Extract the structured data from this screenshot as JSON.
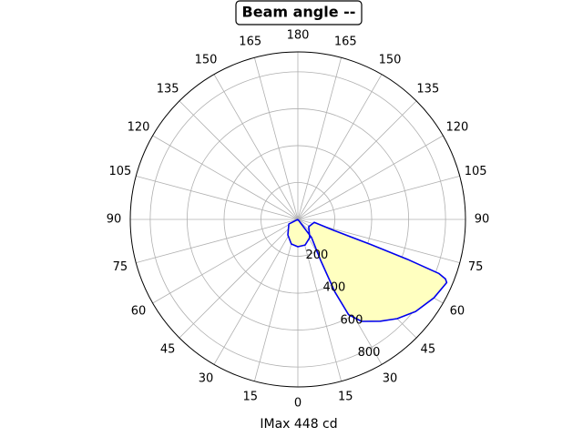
{
  "chart_data": {
    "type": "polar",
    "title": "Beam angle --",
    "xlabel": "IMax 448 cd",
    "theta_zero": "bottom",
    "theta_direction": "counterclockwise",
    "series": [
      {
        "color": "#0000ee",
        "fill": "#ffffc0",
        "x": [
          0,
          297,
          327,
          345,
          0,
          16,
          33,
          56,
          80,
          73,
          71,
          70,
          69,
          68,
          67,
          60,
          52,
          45,
          39,
          32,
          28,
          27,
          29,
          37,
          0
        ],
        "values": [
          0,
          55,
          100,
          138,
          148,
          144,
          118,
          71,
          90,
          206,
          417,
          630,
          817,
          862,
          876,
          851,
          810,
          761,
          710,
          652,
          585,
          442,
          254,
          123,
          0
        ]
      }
    ],
    "ylim": [
      0,
      908
    ],
    "yticks": [
      200,
      400,
      600,
      800
    ],
    "xticks": [
      0,
      15,
      30,
      45,
      60,
      75,
      90,
      105,
      120,
      135,
      150,
      165,
      180,
      {
        "value": 195,
        "label": "165"
      },
      {
        "value": 210,
        "label": "150"
      },
      {
        "value": 225,
        "label": "135"
      },
      {
        "value": 240,
        "label": "120"
      },
      {
        "value": 255,
        "label": "105"
      },
      {
        "value": 270,
        "label": "90"
      },
      {
        "value": 285,
        "label": "75"
      },
      {
        "value": 300,
        "label": "60"
      },
      {
        "value": 315,
        "label": "45"
      },
      {
        "value": 330,
        "label": "30"
      },
      {
        "value": 345,
        "label": "15"
      }
    ],
    "grid": true
  }
}
